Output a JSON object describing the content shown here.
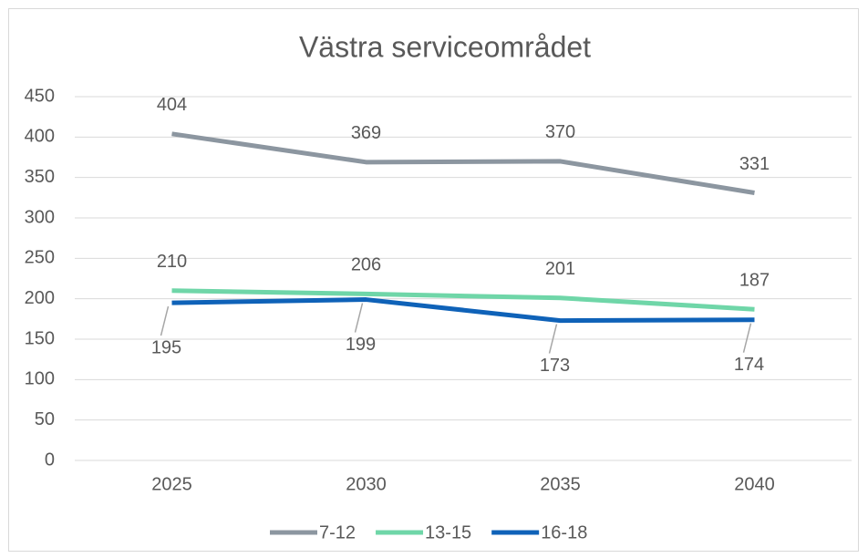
{
  "chart_data": {
    "type": "line",
    "title": "Västra serviceområdet",
    "categories": [
      "2025",
      "2030",
      "2035",
      "2040"
    ],
    "series": [
      {
        "name": "7-12",
        "color": "#8c96a0",
        "values": [
          404,
          369,
          370,
          331
        ]
      },
      {
        "name": "13-15",
        "color": "#6fd6a8",
        "values": [
          210,
          206,
          201,
          187
        ]
      },
      {
        "name": "16-18",
        "color": "#0f62b8",
        "values": [
          195,
          199,
          173,
          174
        ]
      }
    ],
    "ylim": [
      0,
      450
    ],
    "yticks": [
      0,
      50,
      100,
      150,
      200,
      250,
      300,
      350,
      400,
      450
    ],
    "grid": true,
    "legend": "bottom"
  }
}
